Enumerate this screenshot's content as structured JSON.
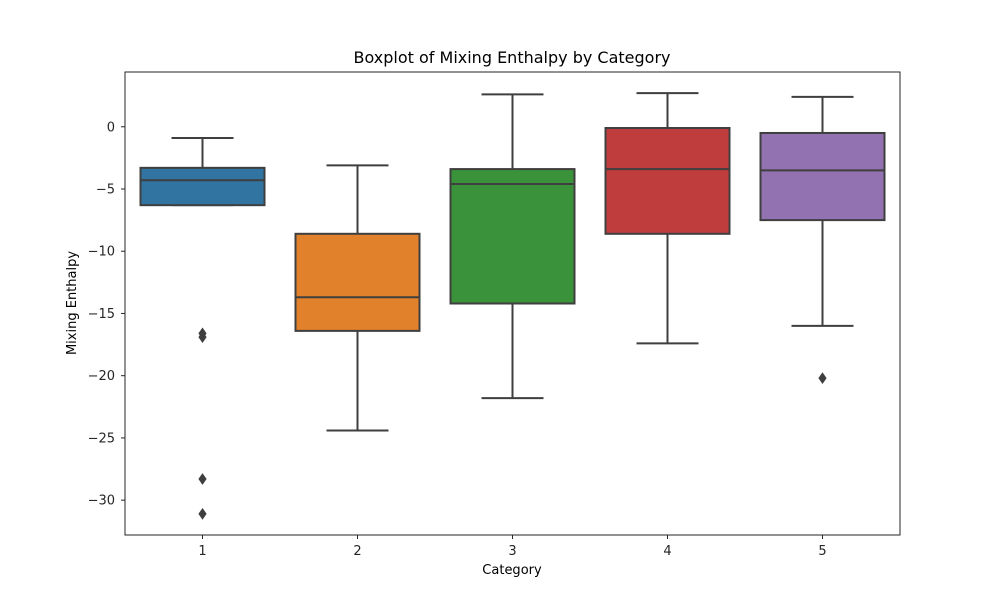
{
  "chart_data": {
    "type": "boxplot",
    "title": "Boxplot of Mixing Enthalpy by Category",
    "xlabel": "Category",
    "ylabel": "Mixing Enthalpy",
    "ylim": [
      -32.8,
      4.4
    ],
    "yticks": [
      0,
      -5,
      -10,
      -15,
      -20,
      -25,
      -30
    ],
    "ytick_labels": [
      "0",
      "−5",
      "−10",
      "−15",
      "−20",
      "−25",
      "−30"
    ],
    "grid": false,
    "categories": [
      "1",
      "2",
      "3",
      "4",
      "5"
    ],
    "boxes": [
      {
        "category": "1",
        "whisker_low": -6.3,
        "q1": -6.3,
        "median": -4.3,
        "q3": -3.3,
        "whisker_high": -0.9,
        "outliers": [
          -16.6,
          -16.9,
          -28.3,
          -31.1
        ],
        "color": "#3274a1"
      },
      {
        "category": "2",
        "whisker_low": -24.4,
        "q1": -16.4,
        "median": -13.7,
        "q3": -8.6,
        "whisker_high": -3.1,
        "outliers": [],
        "color": "#e1812c"
      },
      {
        "category": "3",
        "whisker_low": -21.8,
        "q1": -14.2,
        "median": -4.6,
        "q3": -3.4,
        "whisker_high": 2.6,
        "outliers": [],
        "color": "#3a923a"
      },
      {
        "category": "4",
        "whisker_low": -17.4,
        "q1": -8.6,
        "median": -3.4,
        "q3": -0.1,
        "whisker_high": 2.7,
        "outliers": [],
        "color": "#c03d3e"
      },
      {
        "category": "5",
        "whisker_low": -16.0,
        "q1": -7.5,
        "median": -3.5,
        "q3": -0.5,
        "whisker_high": 2.4,
        "outliers": [
          -20.2
        ],
        "color": "#9372b2"
      }
    ],
    "line_color": "#3f3f3f"
  }
}
